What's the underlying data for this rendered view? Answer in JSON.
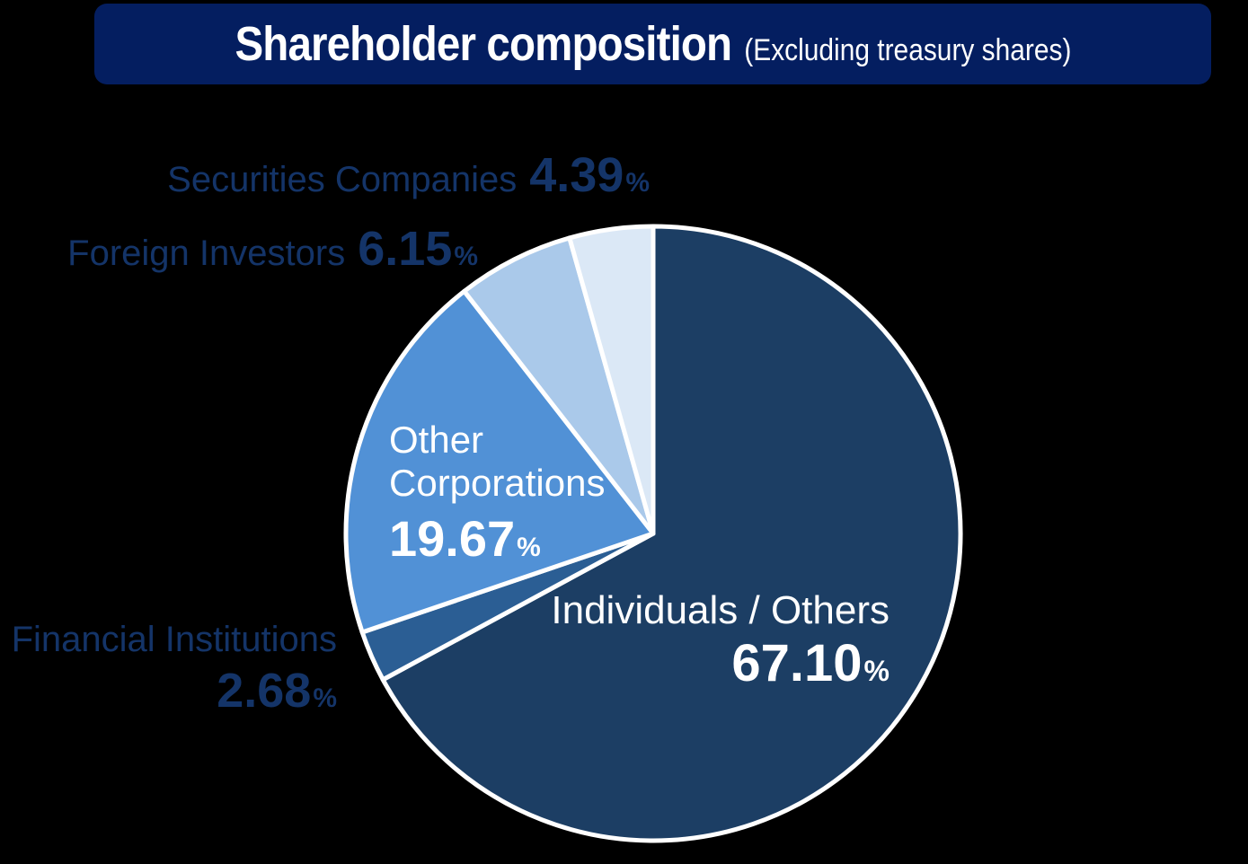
{
  "title": {
    "main": "Shareholder composition",
    "sub": "(Excluding treasury shares)"
  },
  "chart_data": {
    "type": "pie",
    "title": "Shareholder composition",
    "subtitle": "(Excluding treasury shares)",
    "unit": "%",
    "start_angle_deg": -90,
    "direction": "clockwise",
    "background_color": "#000000",
    "title_bar_color": "#041e60",
    "outside_label_color": "#143468",
    "inside_label_color": "#ffffff",
    "slice_border_color": "#ffffff",
    "slices": [
      {
        "label": "Individuals / Others",
        "value": 67.1,
        "display": "67.10",
        "color": "#1c3e64",
        "label_position": "inside"
      },
      {
        "label": "Financial Institutions",
        "value": 2.68,
        "display": "2.68",
        "color": "#2b5e94",
        "label_position": "outside"
      },
      {
        "label": "Other Corporations",
        "value": 19.67,
        "display": "19.67",
        "color": "#5191d6",
        "label_position": "inside"
      },
      {
        "label": "Foreign Investors",
        "value": 6.15,
        "display": "6.15",
        "color": "#aac9ea",
        "label_position": "outside"
      },
      {
        "label": "Securities Companies",
        "value": 4.39,
        "display": "4.39",
        "color": "#dbe8f6",
        "label_position": "outside"
      }
    ]
  }
}
